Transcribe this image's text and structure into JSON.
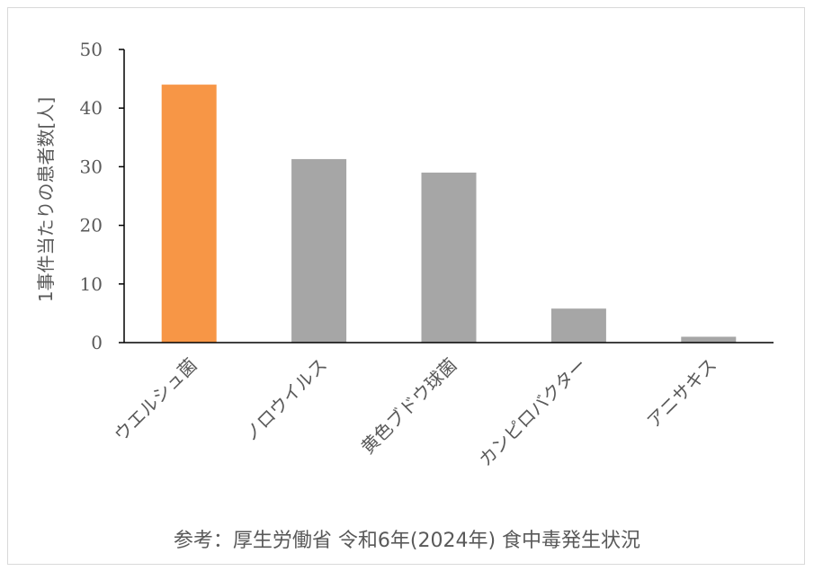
{
  "chart_data": {
    "type": "bar",
    "title": "",
    "xlabel": "",
    "ylabel": "1事件当たりの患者数[人]",
    "categories": [
      "ウエルシュ菌",
      "ノロウイルス",
      "黄色ブドウ球菌",
      "カンピロバクター",
      "アニサキス"
    ],
    "values": [
      44,
      31.3,
      29,
      5.8,
      1
    ],
    "ylim": [
      0,
      50
    ],
    "yticks": [
      0,
      10,
      20,
      30,
      40,
      50
    ],
    "grid": false,
    "legend": "none",
    "colors": {
      "highlight": "#f79646",
      "default": "#a6a6a6",
      "axis": "#000000",
      "text": "#595959"
    }
  },
  "source_note": "参考：厚生労働省 令和6年(2024年) 食中毒発生状況"
}
